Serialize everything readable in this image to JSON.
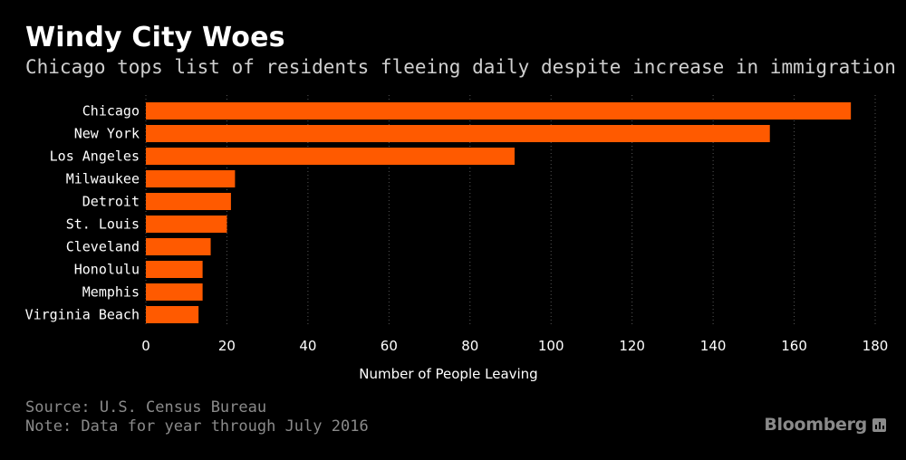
{
  "chart_data": {
    "type": "bar",
    "orientation": "horizontal",
    "title": "Windy City Woes",
    "subtitle": "Chicago tops list of residents fleeing daily despite increase in immigration",
    "categories": [
      "Chicago",
      "New York",
      "Los Angeles",
      "Milwaukee",
      "Detroit",
      "St. Louis",
      "Cleveland",
      "Honolulu",
      "Memphis",
      "Virginia Beach"
    ],
    "values": [
      174,
      154,
      91,
      22,
      21,
      20,
      16,
      14,
      14,
      13
    ],
    "xlabel": "Number of People Leaving",
    "ylabel": "",
    "xlim": [
      0,
      180
    ],
    "xticks": [
      "0",
      "20",
      "40",
      "60",
      "80",
      "100",
      "120",
      "140",
      "160",
      "180"
    ],
    "grid": true,
    "bar_color": "#ff5a00",
    "background_color": "#000000"
  },
  "footer": {
    "source": "Source: U.S. Census Bureau",
    "note": "Note: Data for year through July 2016"
  },
  "brand": {
    "name": "Bloomberg",
    "icon": "chart-bars-icon"
  }
}
